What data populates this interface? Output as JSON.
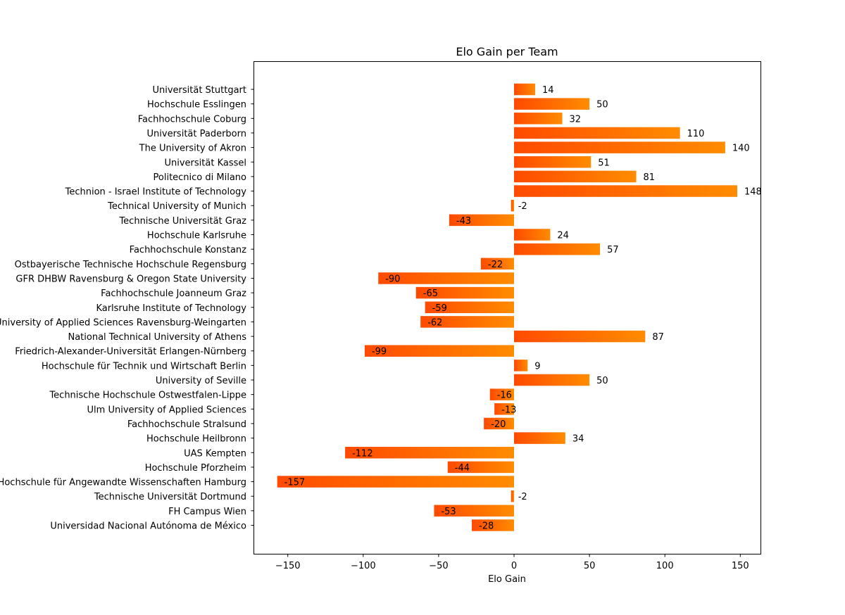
{
  "chart_data": {
    "type": "bar",
    "orientation": "horizontal",
    "title": "Elo Gain per Team",
    "xlabel": "Elo Gain",
    "ylabel": "",
    "xlim": [
      -172,
      164
    ],
    "xticks": [
      -150,
      -100,
      -50,
      0,
      50,
      100,
      150
    ],
    "xtick_labels": [
      "−150",
      "−100",
      "−50",
      "0",
      "50",
      "100",
      "150"
    ],
    "grid": false,
    "colors": {
      "gradient_start": "#ff4a00",
      "gradient_end": "#ff8c00"
    },
    "categories": [
      "Universität Stuttgart",
      "Hochschule Esslingen",
      "Fachhochschule Coburg",
      "Universität Paderborn",
      "The University of Akron",
      "Universität Kassel",
      "Politecnico di Milano",
      "Technion - Israel Institute of Technology",
      "Technical University of Munich",
      "Technische Universität Graz",
      "Hochschule Karlsruhe",
      "Fachhochschule Konstanz",
      "Ostbayerische Technische Hochschule Regensburg",
      "GFR DHBW Ravensburg & Oregon State University",
      "Fachhochschule Joanneum Graz",
      "Karlsruhe Institute of Technology",
      "University of Applied Sciences Ravensburg-Weingarten",
      "National Technical University of Athens",
      "Friedrich-Alexander-Universität Erlangen-Nürnberg",
      "Hochschule für Technik und Wirtschaft Berlin",
      "University of Seville",
      "Technische Hochschule Ostwestfalen-Lippe",
      "Ulm University of Applied Sciences",
      "Fachhochschule Stralsund",
      "Hochschule Heilbronn",
      "UAS Kempten",
      "Hochschule Pforzheim",
      "Hochschule für Angewandte Wissenschaften Hamburg",
      "Technische Universität Dortmund",
      "FH Campus Wien",
      "Universidad Nacional Autónoma de México"
    ],
    "values": [
      14,
      50,
      32,
      110,
      140,
      51,
      81,
      148,
      -2,
      -43,
      24,
      57,
      -22,
      -90,
      -65,
      -59,
      -62,
      87,
      -99,
      9,
      50,
      -16,
      -13,
      -20,
      34,
      -112,
      -44,
      -157,
      -2,
      -53,
      -28
    ]
  }
}
